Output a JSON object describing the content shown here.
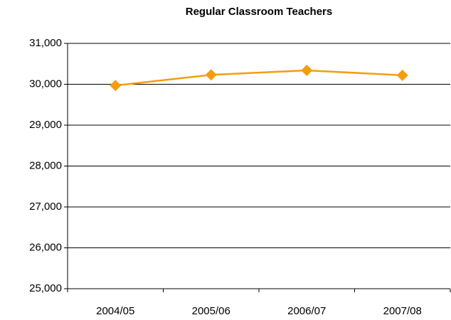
{
  "chart_data": {
    "type": "line",
    "title": "Regular Classroom Teachers",
    "categories": [
      "2004/05",
      "2005/06",
      "2006/07",
      "2007/08"
    ],
    "series": [
      {
        "name": null,
        "color": "#f59d0f",
        "values": [
          29970,
          30230,
          30340,
          30220
        ]
      }
    ],
    "ylim": [
      25000,
      31000
    ],
    "yticks": [
      {
        "value": 25000,
        "label": "25,000"
      },
      {
        "value": 26000,
        "label": "26,000"
      },
      {
        "value": 27000,
        "label": "27,000"
      },
      {
        "value": 28000,
        "label": "28,000"
      },
      {
        "value": 29000,
        "label": "29,000"
      },
      {
        "value": 30000,
        "label": "30,000"
      },
      {
        "value": 31000,
        "label": "31,000"
      }
    ],
    "grid": true
  }
}
